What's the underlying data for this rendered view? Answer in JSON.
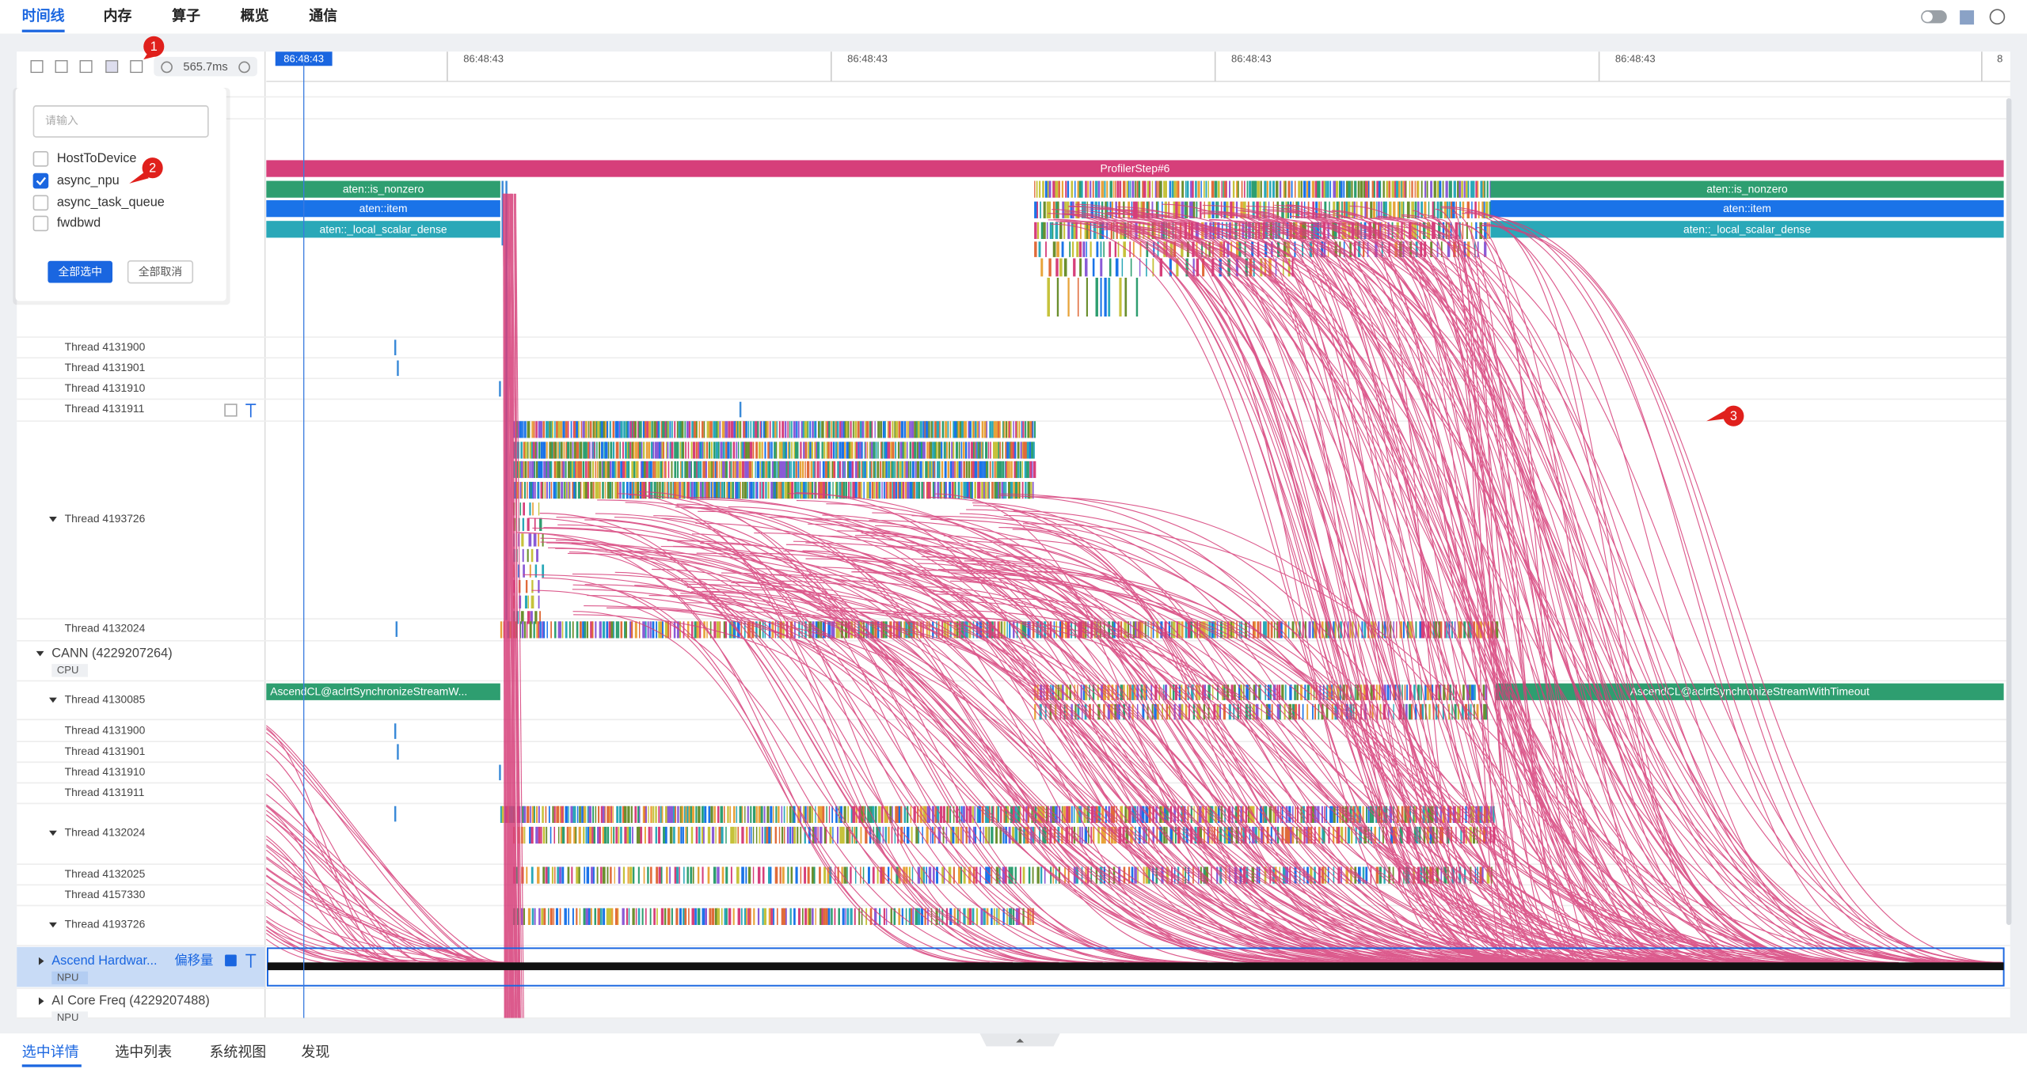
{
  "tabs": [
    "时间线",
    "内存",
    "算子",
    "概览",
    "通信"
  ],
  "toolbar": {
    "zoom": "565.7ms"
  },
  "ruler": {
    "cursor": "86:48:43",
    "labels": [
      "86:48:43",
      "86:48:43",
      "86:48:43",
      "86:48:43",
      "8"
    ]
  },
  "filter_popup": {
    "placeholder": "请输入",
    "options": [
      {
        "label": "HostToDevice",
        "checked": false
      },
      {
        "label": "async_npu",
        "checked": true
      },
      {
        "label": "async_task_queue",
        "checked": false
      },
      {
        "label": "fwdbwd",
        "checked": false
      }
    ],
    "select_all": "全部选中",
    "deselect_all": "全部取消"
  },
  "callouts": [
    "1",
    "2",
    "3"
  ],
  "tracks": [
    {
      "name": "Thread 4131900"
    },
    {
      "name": "Thread 4131901"
    },
    {
      "name": "Thread 4131910"
    },
    {
      "name": "Thread 4131911"
    },
    {
      "name": "Thread 4193726"
    },
    {
      "name": "Thread 4132024"
    },
    {
      "name": "CANN (4229207264)",
      "sub": "CPU"
    },
    {
      "name": "Thread 4130085"
    },
    {
      "name": "Thread 4131900"
    },
    {
      "name": "Thread 4131901"
    },
    {
      "name": "Thread 4131910"
    },
    {
      "name": "Thread 4131911"
    },
    {
      "name": "Thread 4132024"
    },
    {
      "name": "Thread 4132025"
    },
    {
      "name": "Thread 4157330"
    },
    {
      "name": "Thread 4193726"
    },
    {
      "name": "Ascend Hardwar...",
      "sub": "NPU",
      "tag": "偏移量"
    },
    {
      "name": "AI Core Freq (4229207488)",
      "sub": "NPU"
    }
  ],
  "slices": [
    "ProfilerStep#6",
    "aten::is_nonzero",
    "aten::item",
    "aten::_local_scalar_dense",
    "aten::is_nonzero",
    "aten::item",
    "aten::_local_scalar_dense",
    "AscendCL@aclrtSynchronizeStreamW...",
    "AscendCL@aclrtSynchronizeStreamWithTimeout"
  ],
  "bottom_tabs": [
    "选中详情",
    "选中列表",
    "系统视图",
    "发现"
  ]
}
